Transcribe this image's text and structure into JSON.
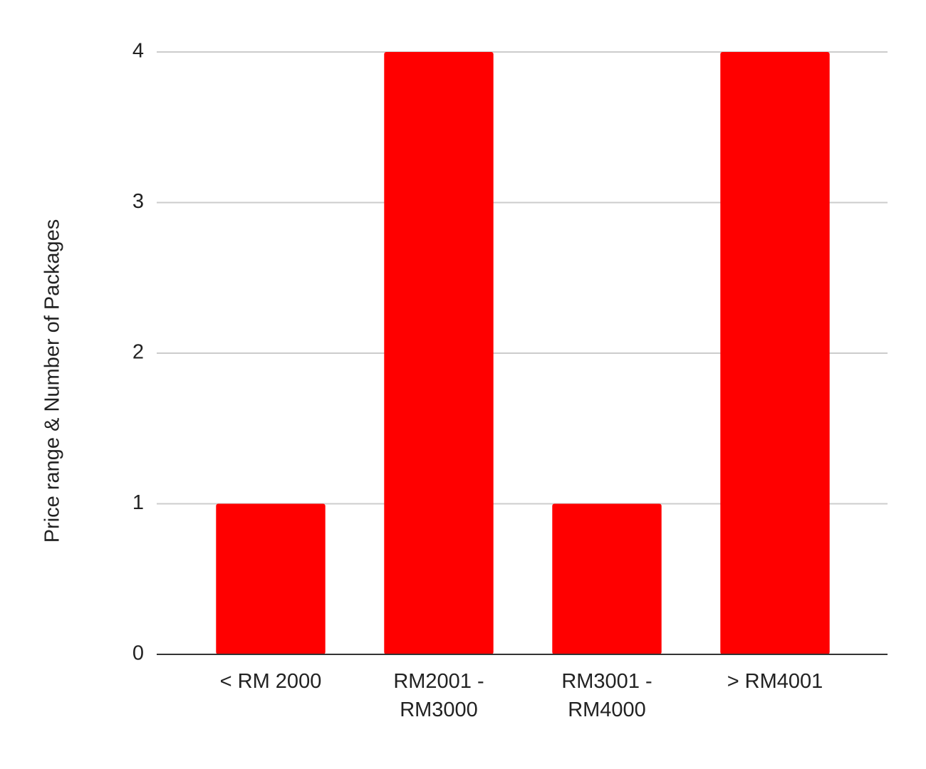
{
  "chart_data": {
    "type": "bar",
    "y_label": "Price range & Number of Packages",
    "categories": [
      "< RM 2000",
      "RM2001 - RM3000",
      "RM3001 - RM4000",
      "> RM4001"
    ],
    "values": [
      1,
      4,
      1,
      4
    ],
    "color": "#ff0000",
    "ylim": [
      0,
      4
    ],
    "yticks": [
      0,
      1,
      2,
      3,
      4
    ],
    "grid": true
  }
}
